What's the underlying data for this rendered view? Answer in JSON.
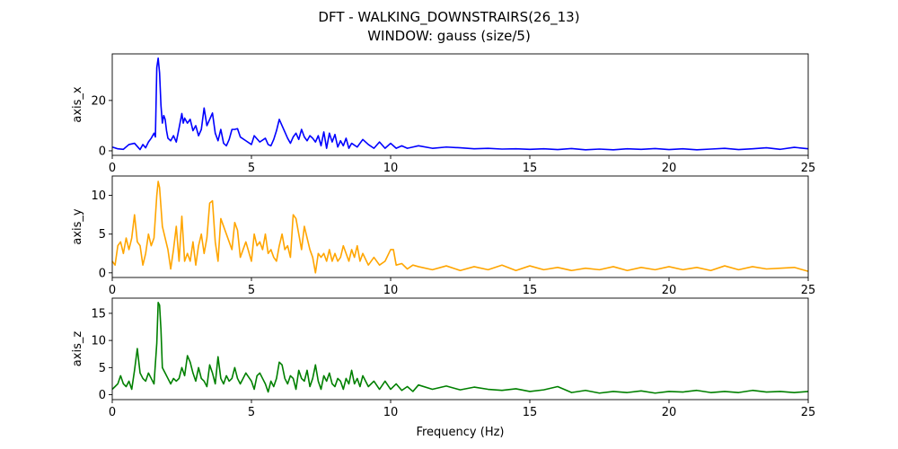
{
  "figure": {
    "title_line1": "DFT - WALKING_DOWNSTRAIRS(26_13)",
    "title_line2": "WINDOW: gauss (size/5)",
    "xlabel": "Frequency (Hz)"
  },
  "chart_data": [
    {
      "type": "line",
      "title": "DFT - WALKING_DOWNSTRAIRS(26_13) / WINDOW: gauss (size/5)",
      "ylabel": "axis_x",
      "xlabel": "",
      "color": "#0000ff",
      "xlim": [
        0,
        25
      ],
      "ylim": [
        -1.8,
        38.5
      ],
      "xticks": [
        0,
        5,
        10,
        15,
        20,
        25
      ],
      "yticks": [
        0,
        20
      ],
      "grid": false,
      "x": [
        0,
        0.2,
        0.4,
        0.6,
        0.8,
        1.0,
        1.1,
        1.2,
        1.3,
        1.4,
        1.5,
        1.55,
        1.6,
        1.65,
        1.7,
        1.75,
        1.8,
        1.85,
        1.9,
        1.95,
        2.0,
        2.1,
        2.2,
        2.3,
        2.4,
        2.5,
        2.55,
        2.6,
        2.7,
        2.8,
        2.9,
        3.0,
        3.1,
        3.2,
        3.3,
        3.4,
        3.5,
        3.6,
        3.7,
        3.8,
        3.9,
        4.0,
        4.1,
        4.2,
        4.3,
        4.4,
        4.5,
        4.6,
        4.8,
        5.0,
        5.1,
        5.3,
        5.5,
        5.6,
        5.7,
        5.8,
        5.9,
        6.0,
        6.1,
        6.2,
        6.3,
        6.4,
        6.5,
        6.6,
        6.7,
        6.8,
        6.9,
        7.0,
        7.1,
        7.2,
        7.3,
        7.4,
        7.5,
        7.6,
        7.7,
        7.8,
        7.9,
        8.0,
        8.1,
        8.2,
        8.3,
        8.4,
        8.5,
        8.6,
        8.8,
        9.0,
        9.2,
        9.4,
        9.6,
        9.8,
        10.0,
        10.2,
        10.4,
        10.6,
        10.8,
        11.0,
        11.5,
        12.0,
        12.5,
        13.0,
        13.5,
        14.0,
        14.5,
        15.0,
        15.5,
        16.0,
        16.5,
        17.0,
        17.5,
        18.0,
        18.5,
        19.0,
        19.5,
        20.0,
        20.5,
        21.0,
        21.5,
        22.0,
        22.5,
        23.0,
        23.5,
        24.0,
        24.5,
        25.0
      ],
      "y": [
        1.5,
        0.8,
        0.6,
        2.5,
        3.0,
        0.5,
        2.5,
        1.2,
        3.5,
        5.0,
        7.0,
        5.5,
        33.0,
        36.8,
        31.0,
        18.0,
        11.0,
        14.0,
        12.5,
        8.0,
        5.0,
        4.0,
        6.0,
        3.5,
        9.0,
        14.8,
        11.0,
        13.0,
        11.0,
        12.5,
        8.0,
        10.0,
        6.0,
        8.5,
        17.0,
        10.0,
        12.5,
        15.0,
        7.0,
        4.0,
        8.5,
        3.0,
        2.0,
        4.5,
        8.5,
        8.5,
        8.8,
        5.5,
        4.0,
        2.5,
        6.0,
        3.5,
        5.0,
        2.5,
        2.0,
        4.5,
        8.0,
        12.5,
        10.0,
        7.5,
        5.0,
        3.0,
        5.5,
        7.0,
        4.5,
        8.5,
        5.5,
        4.0,
        6.0,
        5.0,
        3.5,
        6.0,
        2.0,
        7.5,
        1.0,
        7.0,
        3.5,
        6.5,
        1.5,
        4.0,
        2.0,
        5.0,
        1.0,
        3.0,
        1.5,
        4.5,
        2.5,
        1.0,
        3.5,
        1.0,
        3.0,
        1.0,
        2.0,
        1.0,
        1.5,
        2.0,
        1.0,
        1.5,
        1.2,
        0.8,
        1.0,
        0.7,
        0.8,
        0.6,
        0.8,
        0.5,
        0.9,
        0.4,
        0.7,
        0.4,
        0.8,
        0.6,
        0.9,
        0.5,
        0.8,
        0.4,
        0.7,
        1.0,
        0.5,
        0.8,
        1.2,
        0.6,
        1.4,
        0.8
      ]
    },
    {
      "type": "line",
      "ylabel": "axis_y",
      "xlabel": "",
      "color": "#ffa500",
      "xlim": [
        0,
        25
      ],
      "ylim": [
        -0.6,
        12.5
      ],
      "xticks": [
        0,
        5,
        10,
        15,
        20,
        25
      ],
      "yticks": [
        0,
        5,
        10
      ],
      "grid": false,
      "x": [
        0,
        0.1,
        0.2,
        0.3,
        0.4,
        0.5,
        0.6,
        0.7,
        0.8,
        0.9,
        1.0,
        1.1,
        1.2,
        1.3,
        1.4,
        1.5,
        1.6,
        1.65,
        1.7,
        1.8,
        1.9,
        2.0,
        2.1,
        2.2,
        2.3,
        2.4,
        2.5,
        2.6,
        2.7,
        2.8,
        2.9,
        3.0,
        3.1,
        3.2,
        3.3,
        3.4,
        3.5,
        3.6,
        3.7,
        3.8,
        3.9,
        4.0,
        4.1,
        4.2,
        4.3,
        4.4,
        4.5,
        4.6,
        4.8,
        5.0,
        5.1,
        5.2,
        5.3,
        5.4,
        5.5,
        5.6,
        5.7,
        5.8,
        5.9,
        6.0,
        6.1,
        6.2,
        6.3,
        6.4,
        6.5,
        6.6,
        6.7,
        6.8,
        6.9,
        7.0,
        7.1,
        7.2,
        7.3,
        7.4,
        7.5,
        7.6,
        7.7,
        7.8,
        7.9,
        8.0,
        8.1,
        8.2,
        8.3,
        8.4,
        8.5,
        8.6,
        8.7,
        8.8,
        8.9,
        9.0,
        9.2,
        9.4,
        9.6,
        9.8,
        10.0,
        10.1,
        10.2,
        10.4,
        10.6,
        10.8,
        11.0,
        11.5,
        12.0,
        12.5,
        13.0,
        13.5,
        14.0,
        14.5,
        15.0,
        15.5,
        16.0,
        16.5,
        17.0,
        17.5,
        18.0,
        18.5,
        19.0,
        19.5,
        20.0,
        20.5,
        21.0,
        21.5,
        22.0,
        22.5,
        23.0,
        23.5,
        24.0,
        24.5,
        25.0
      ],
      "y": [
        1.5,
        1.0,
        3.5,
        4.0,
        2.5,
        4.5,
        3.0,
        4.5,
        7.5,
        4.0,
        3.5,
        1.0,
        2.5,
        5.0,
        3.5,
        4.5,
        10.0,
        11.8,
        11.0,
        6.0,
        4.5,
        3.0,
        0.5,
        3.0,
        6.0,
        1.5,
        7.3,
        1.5,
        2.5,
        1.5,
        4.0,
        1.0,
        3.5,
        5.0,
        2.5,
        4.5,
        9.0,
        9.3,
        4.0,
        1.5,
        7.0,
        6.0,
        5.0,
        4.0,
        3.0,
        6.5,
        5.5,
        2.0,
        4.0,
        1.5,
        5.0,
        3.5,
        4.0,
        3.0,
        5.0,
        2.5,
        3.0,
        2.0,
        1.5,
        3.5,
        5.0,
        3.0,
        3.5,
        2.0,
        7.5,
        7.0,
        5.0,
        3.0,
        6.0,
        4.5,
        3.0,
        2.0,
        0.0,
        2.5,
        2.0,
        2.5,
        1.5,
        3.0,
        1.5,
        2.5,
        1.5,
        2.0,
        3.5,
        2.5,
        1.5,
        3.0,
        2.0,
        3.5,
        1.5,
        2.5,
        1.0,
        2.0,
        1.0,
        1.5,
        3.0,
        3.0,
        1.0,
        1.2,
        0.5,
        1.0,
        0.8,
        0.4,
        0.9,
        0.3,
        0.8,
        0.4,
        1.0,
        0.3,
        0.9,
        0.4,
        0.7,
        0.3,
        0.6,
        0.4,
        0.8,
        0.3,
        0.7,
        0.4,
        0.8,
        0.4,
        0.7,
        0.3,
        0.9,
        0.4,
        0.8,
        0.5,
        0.6,
        0.7,
        0.2
      ]
    },
    {
      "type": "line",
      "ylabel": "axis_z",
      "xlabel": "Frequency (Hz)",
      "color": "#008000",
      "xlim": [
        0,
        25
      ],
      "ylim": [
        -0.9,
        17.8
      ],
      "xticks": [
        0,
        5,
        10,
        15,
        20,
        25
      ],
      "yticks": [
        0,
        5,
        10,
        15
      ],
      "grid": false,
      "x": [
        0,
        0.1,
        0.2,
        0.3,
        0.4,
        0.5,
        0.6,
        0.7,
        0.8,
        0.9,
        1.0,
        1.1,
        1.2,
        1.3,
        1.4,
        1.5,
        1.6,
        1.65,
        1.7,
        1.75,
        1.8,
        1.9,
        2.0,
        2.1,
        2.2,
        2.3,
        2.4,
        2.5,
        2.6,
        2.7,
        2.8,
        2.9,
        3.0,
        3.1,
        3.2,
        3.3,
        3.4,
        3.5,
        3.6,
        3.7,
        3.8,
        3.9,
        4.0,
        4.1,
        4.2,
        4.3,
        4.4,
        4.5,
        4.6,
        4.8,
        5.0,
        5.1,
        5.2,
        5.3,
        5.4,
        5.5,
        5.6,
        5.7,
        5.8,
        5.9,
        6.0,
        6.1,
        6.2,
        6.3,
        6.4,
        6.5,
        6.6,
        6.7,
        6.8,
        6.9,
        7.0,
        7.1,
        7.2,
        7.3,
        7.4,
        7.5,
        7.6,
        7.7,
        7.8,
        7.9,
        8.0,
        8.1,
        8.2,
        8.3,
        8.4,
        8.5,
        8.6,
        8.7,
        8.8,
        8.9,
        9.0,
        9.2,
        9.4,
        9.6,
        9.8,
        10.0,
        10.2,
        10.4,
        10.6,
        10.8,
        11.0,
        11.5,
        12.0,
        12.5,
        13.0,
        13.5,
        14.0,
        14.5,
        15.0,
        15.5,
        16.0,
        16.5,
        17.0,
        17.5,
        18.0,
        18.5,
        19.0,
        19.5,
        20.0,
        20.5,
        21.0,
        21.5,
        22.0,
        22.5,
        23.0,
        23.5,
        24.0,
        24.5,
        25.0
      ],
      "y": [
        1.0,
        1.5,
        2.0,
        3.5,
        2.0,
        1.5,
        2.5,
        1.0,
        4.5,
        8.5,
        4.0,
        3.0,
        2.5,
        4.0,
        3.0,
        2.0,
        9.5,
        17.0,
        16.5,
        12.0,
        5.0,
        4.0,
        3.0,
        2.0,
        3.0,
        2.5,
        3.0,
        5.0,
        3.5,
        7.2,
        6.0,
        4.0,
        2.5,
        5.0,
        3.0,
        2.5,
        1.5,
        5.5,
        4.0,
        2.0,
        7.0,
        3.0,
        2.0,
        3.5,
        2.5,
        3.0,
        5.0,
        3.0,
        2.0,
        4.0,
        2.5,
        1.0,
        3.5,
        4.0,
        3.0,
        2.0,
        0.5,
        2.5,
        1.5,
        3.0,
        6.0,
        5.5,
        3.0,
        2.0,
        3.5,
        3.0,
        1.0,
        4.5,
        3.0,
        2.5,
        4.5,
        1.5,
        3.0,
        5.5,
        2.5,
        1.0,
        3.5,
        2.5,
        4.0,
        2.0,
        1.5,
        3.0,
        2.5,
        1.0,
        3.0,
        2.0,
        4.5,
        2.0,
        3.0,
        1.5,
        3.5,
        1.5,
        2.5,
        1.0,
        2.5,
        1.0,
        2.0,
        0.8,
        1.5,
        0.6,
        1.8,
        1.0,
        1.6,
        0.9,
        1.4,
        1.0,
        0.8,
        1.1,
        0.6,
        0.9,
        1.5,
        0.4,
        0.8,
        0.3,
        0.6,
        0.4,
        0.7,
        0.3,
        0.6,
        0.5,
        0.8,
        0.4,
        0.6,
        0.4,
        0.8,
        0.5,
        0.6,
        0.4,
        0.6
      ]
    }
  ]
}
